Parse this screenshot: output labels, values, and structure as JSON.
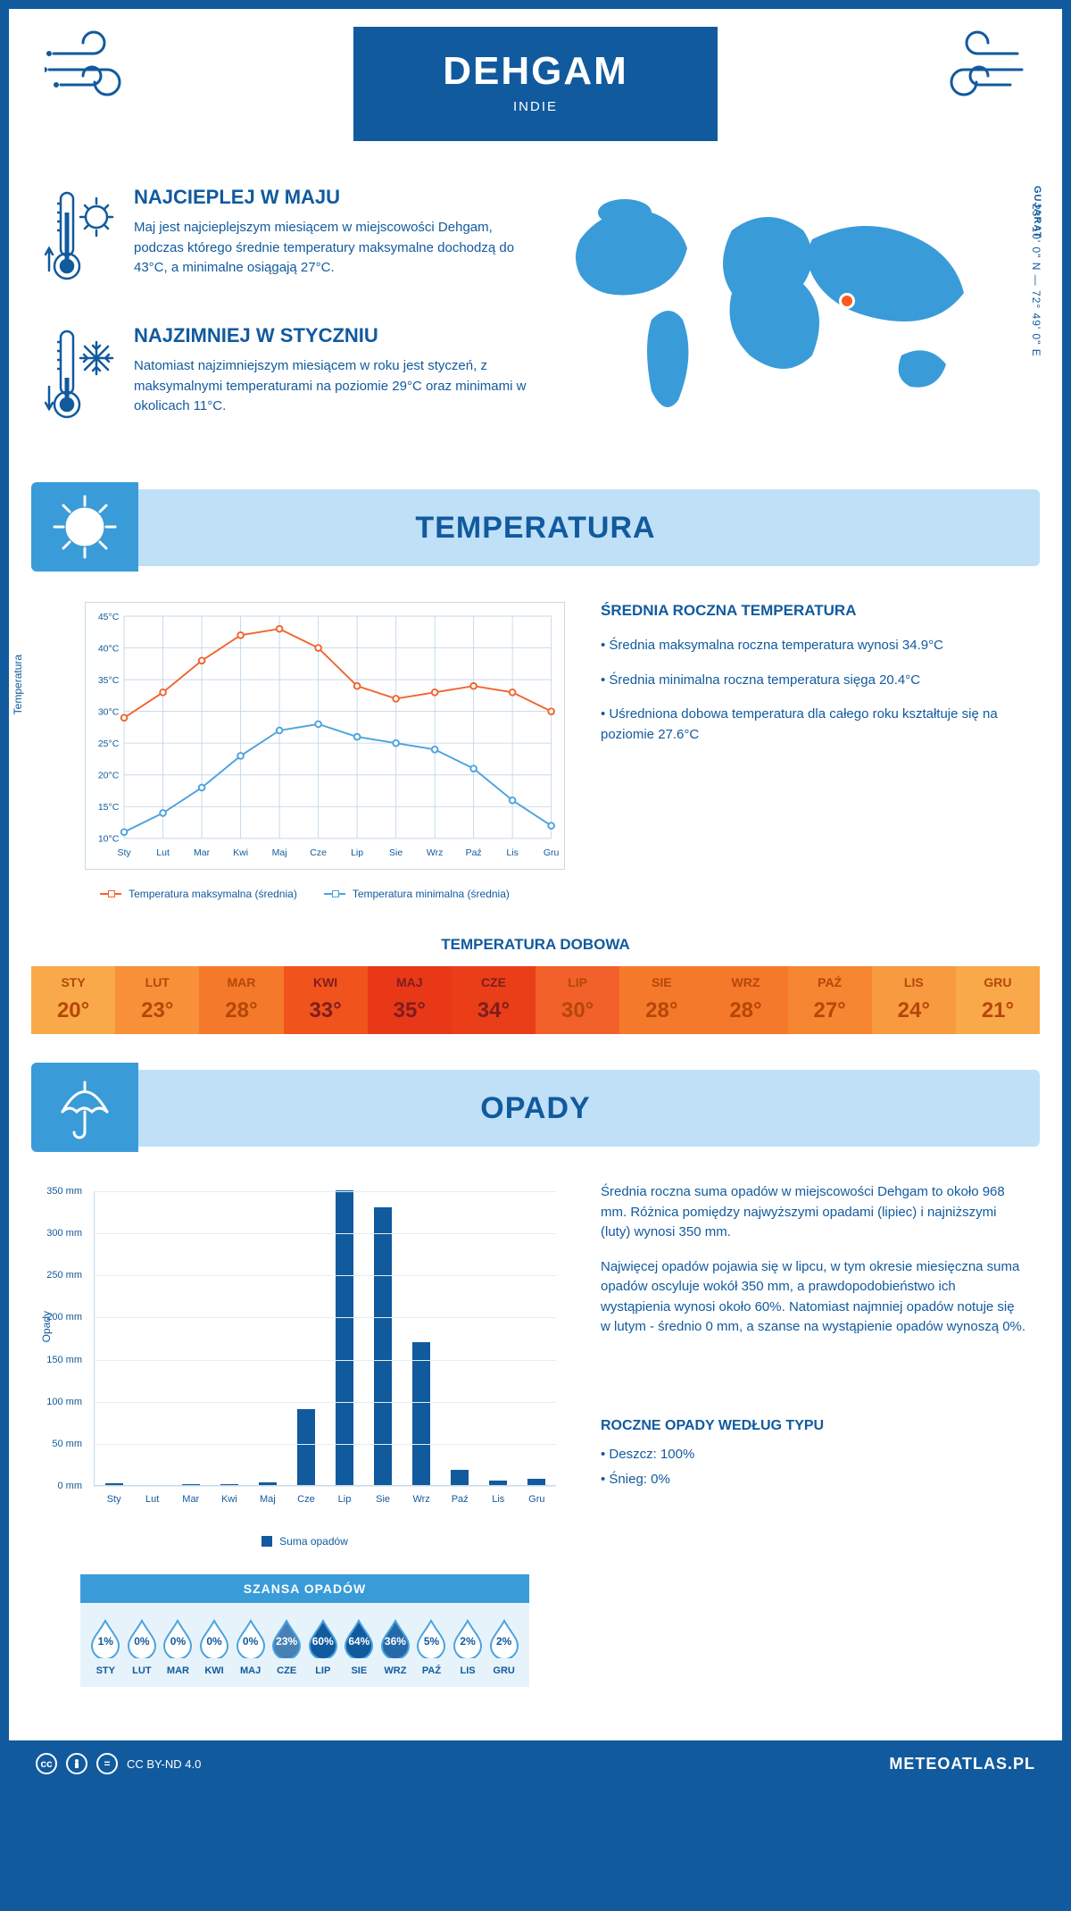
{
  "header": {
    "title": "DEHGAM",
    "subtitle": "INDIE",
    "region": "GUJARAT",
    "coords": "23° 10' 0\" N — 72° 49' 0\" E"
  },
  "facts": {
    "warm": {
      "title": "NAJCIEPLEJ W MAJU",
      "body": "Maj jest najcieplejszym miesiącem w miejscowości Dehgam, podczas którego średnie temperatury maksymalne dochodzą do 43°C, a minimalne osiągają 27°C."
    },
    "cold": {
      "title": "NAJZIMNIEJ W STYCZNIU",
      "body": "Natomiast najzimniejszym miesiącem w roku jest styczeń, z maksymalnymi temperaturami na poziomie 29°C oraz minimami w okolicach 11°C."
    }
  },
  "sections": {
    "temperature": "TEMPERATURA",
    "precipitation": "OPADY"
  },
  "temp_chart": {
    "type": "line",
    "ylabel": "Temperatura",
    "ylim": [
      10,
      45
    ],
    "ytick_step": 5,
    "y_unit": "°C",
    "months": [
      "Sty",
      "Lut",
      "Mar",
      "Kwi",
      "Maj",
      "Cze",
      "Lip",
      "Sie",
      "Wrz",
      "Paź",
      "Lis",
      "Gru"
    ],
    "series": {
      "max": {
        "label": "Temperatura maksymalna (średnia)",
        "color": "#f26430",
        "values": [
          29,
          33,
          38,
          42,
          43,
          40,
          34,
          32,
          33,
          34,
          33,
          30
        ]
      },
      "min": {
        "label": "Temperatura minimalna (średnia)",
        "color": "#4ba3df",
        "values": [
          11,
          14,
          18,
          23,
          27,
          28,
          26,
          25,
          24,
          21,
          16,
          12
        ]
      }
    },
    "grid_color": "#c5d9ea",
    "background_color": "#ffffff",
    "line_width": 2,
    "marker": "circle"
  },
  "temp_text": {
    "title": "ŚREDNIA ROCZNA TEMPERATURA",
    "bullets": [
      "Średnia maksymalna roczna temperatura wynosi 34.9°C",
      "Średnia minimalna roczna temperatura sięga 20.4°C",
      "Uśredniona dobowa temperatura dla całego roku kształtuje się na poziomie 27.6°C"
    ]
  },
  "daily": {
    "title": "TEMPERATURA DOBOWA",
    "months": [
      "STY",
      "LUT",
      "MAR",
      "KWI",
      "MAJ",
      "CZE",
      "LIP",
      "SIE",
      "WRZ",
      "PAŹ",
      "LIS",
      "GRU"
    ],
    "values": [
      "20°",
      "23°",
      "28°",
      "33°",
      "35°",
      "34°",
      "30°",
      "28°",
      "28°",
      "27°",
      "24°",
      "21°"
    ],
    "text_colors": [
      "#b54708",
      "#b54708",
      "#b54708",
      "#7f1d1d",
      "#7f1d1d",
      "#7f1d1d",
      "#b54708",
      "#b54708",
      "#b54708",
      "#b54708",
      "#b54708",
      "#b54708"
    ],
    "bg_colors": [
      "#f9a94a",
      "#f79039",
      "#f5792a",
      "#f0531c",
      "#e83818",
      "#ea3e19",
      "#f26129",
      "#f5792a",
      "#f5792a",
      "#f68631",
      "#f79a40",
      "#f9a94a"
    ]
  },
  "precip_chart": {
    "type": "bar",
    "ylabel": "Opady",
    "ylim": [
      0,
      350
    ],
    "ytick_step": 50,
    "y_unit": " mm",
    "months": [
      "Sty",
      "Lut",
      "Mar",
      "Kwi",
      "Maj",
      "Cze",
      "Lip",
      "Sie",
      "Wrz",
      "Paź",
      "Lis",
      "Gru"
    ],
    "values": [
      2,
      0,
      1,
      1,
      3,
      90,
      350,
      330,
      170,
      18,
      5,
      7
    ],
    "bar_color": "#115a9e",
    "legend": "Suma opadów",
    "grid_color": "#e3edf5"
  },
  "precip_text": {
    "p1": "Średnia roczna suma opadów w miejscowości Dehgam to około 968 mm. Różnica pomiędzy najwyższymi opadami (lipiec) i najniższymi (luty) wynosi 350 mm.",
    "p2": "Najwięcej opadów pojawia się w lipcu, w tym okresie miesięczna suma opadów oscyluje wokół 350 mm, a prawdopodobieństwo ich wystąpienia wynosi około 60%. Natomiast najmniej opadów notuje się w lutym - średnio 0 mm, a szanse na wystąpienie opadów wynoszą 0%."
  },
  "chance": {
    "title": "SZANSA OPADÓW",
    "months": [
      "STY",
      "LUT",
      "MAR",
      "KWI",
      "MAJ",
      "CZE",
      "LIP",
      "SIE",
      "WRZ",
      "PAŹ",
      "LIS",
      "GRU"
    ],
    "pct": [
      "1%",
      "0%",
      "0%",
      "0%",
      "0%",
      "23%",
      "60%",
      "64%",
      "36%",
      "5%",
      "2%",
      "2%"
    ],
    "fill": [
      0.01,
      0,
      0,
      0,
      0,
      0.23,
      0.6,
      0.64,
      0.36,
      0.05,
      0.02,
      0.02
    ],
    "drop_fill": "#115a9e",
    "drop_stroke": "#4ba3df"
  },
  "precip_type": {
    "title": "ROCZNE OPADY WEDŁUG TYPU",
    "items": [
      "• Deszcz: 100%",
      "• Śnieg: 0%"
    ]
  },
  "footer": {
    "license": "CC BY-ND 4.0",
    "site": "METEOATLAS.PL"
  },
  "colors": {
    "brand": "#115a9e",
    "banner_bg": "#bfe0f7",
    "banner_icon": "#3a9bd9"
  }
}
